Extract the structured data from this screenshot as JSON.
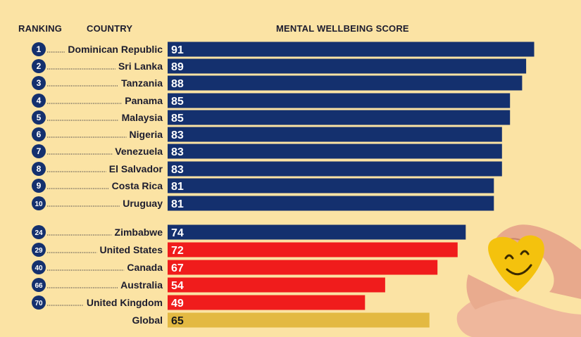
{
  "headers": {
    "ranking": "RANKING",
    "country": "COUNTRY",
    "score": "MENTAL WELLBEING SCORE"
  },
  "colors": {
    "background": "#fbe3a4",
    "top_bar": "#14306e",
    "low_bar": "#f01c1c",
    "global_bar": "#e3b942",
    "badge": "#14306e"
  },
  "chart_data": {
    "type": "bar",
    "orientation": "horizontal",
    "xlabel": "MENTAL WELLBEING SCORE",
    "rows": [
      {
        "rank": "1",
        "country": "Dominican Republic",
        "value": 91,
        "group": "top"
      },
      {
        "rank": "2",
        "country": "Sri Lanka",
        "value": 89,
        "group": "top"
      },
      {
        "rank": "3",
        "country": "Tanzania",
        "value": 88,
        "group": "top"
      },
      {
        "rank": "4",
        "country": "Panama",
        "value": 85,
        "group": "top"
      },
      {
        "rank": "5",
        "country": "Malaysia",
        "value": 85,
        "group": "top"
      },
      {
        "rank": "6",
        "country": "Nigeria",
        "value": 83,
        "group": "top"
      },
      {
        "rank": "7",
        "country": "Venezuela",
        "value": 83,
        "group": "top"
      },
      {
        "rank": "8",
        "country": "El Salvador",
        "value": 83,
        "group": "top"
      },
      {
        "rank": "9",
        "country": "Costa Rica",
        "value": 81,
        "group": "top"
      },
      {
        "rank": "10",
        "country": "Uruguay",
        "value": 81,
        "group": "top"
      },
      {
        "rank": "24",
        "country": "Zimbabwe",
        "value": 74,
        "group": "top"
      },
      {
        "rank": "29",
        "country": "United States",
        "value": 72,
        "group": "low"
      },
      {
        "rank": "40",
        "country": "Canada",
        "value": 67,
        "group": "low"
      },
      {
        "rank": "66",
        "country": "Australia",
        "value": 54,
        "group": "low"
      },
      {
        "rank": "70",
        "country": "United Kingdom",
        "value": 49,
        "group": "low"
      },
      {
        "rank": "",
        "country": "Global",
        "value": 65,
        "group": "global"
      }
    ]
  },
  "image": {
    "icon": "smiley-heart-hands-icon"
  }
}
